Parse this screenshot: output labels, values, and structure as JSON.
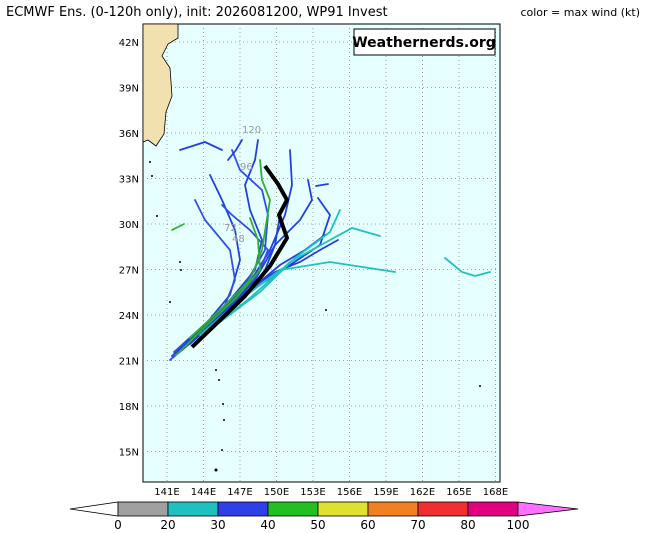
{
  "header": {
    "title": "ECMWF Ens. (0-120h only), init: 2026081200, WP91 Invest",
    "legend_note": "color = max wind (kt)"
  },
  "watermark": "Weathernerds.org",
  "map": {
    "lon_labels": [
      "141E",
      "144E",
      "147E",
      "150E",
      "153E",
      "156E",
      "159E",
      "162E",
      "165E",
      "168E"
    ],
    "lat_labels": [
      "42N",
      "39N",
      "36N",
      "33N",
      "30N",
      "27N",
      "24N",
      "21N",
      "18N",
      "15N"
    ],
    "hour_labels": [
      "120",
      "96",
      "72",
      "48"
    ]
  },
  "colorbar": {
    "labels": [
      "0",
      "20",
      "30",
      "40",
      "50",
      "60",
      "70",
      "80",
      "100"
    ]
  }
}
